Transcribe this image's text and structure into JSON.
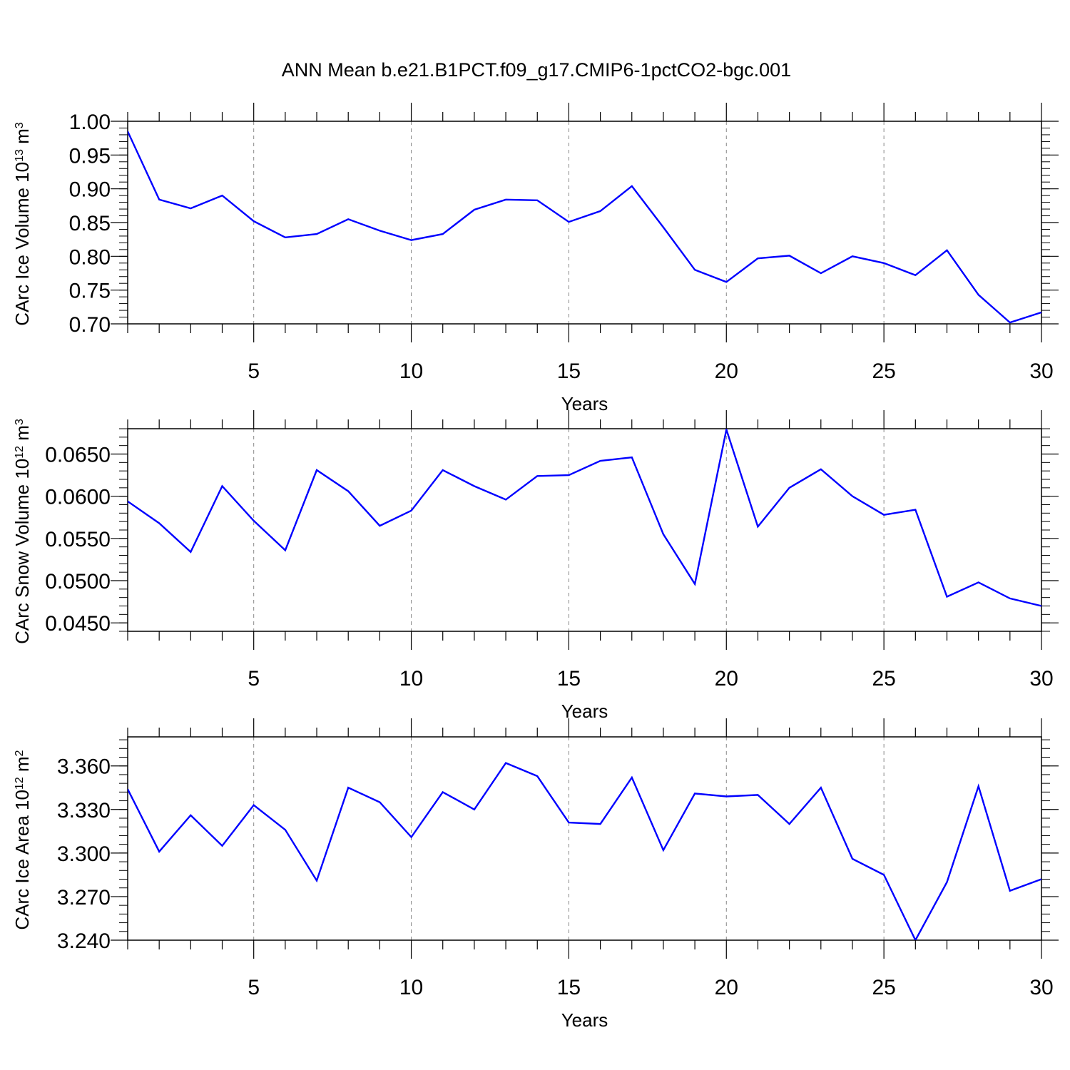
{
  "title": "ANN Mean b.e21.B1PCT.f09_g17.CMIP6-1pctCO2-bgc.001",
  "chart_data": [
    {
      "type": "line",
      "xlabel": "Years",
      "ylabel": "CArc Ice Volume 10",
      "ylabel_exp": "13",
      "ylabel_unit": " m",
      "ylabel_unit_exp": "3",
      "xlim": [
        1,
        30
      ],
      "ylim": [
        0.7,
        1.0
      ],
      "x_ticks": [
        5,
        10,
        15,
        20,
        25,
        30
      ],
      "y_ticks": [
        0.7,
        0.75,
        0.8,
        0.85,
        0.9,
        0.95,
        1.0
      ],
      "y_tick_labels": [
        "0.70",
        "0.75",
        "0.80",
        "0.85",
        "0.90",
        "0.95",
        "1.00"
      ],
      "y_minor_step": 0.01,
      "grid": "vertical dashed at major x ticks",
      "line_color": "#0000ff",
      "x": [
        1,
        2,
        3,
        4,
        5,
        6,
        7,
        8,
        9,
        10,
        11,
        12,
        13,
        14,
        15,
        16,
        17,
        18,
        19,
        20,
        21,
        22,
        23,
        24,
        25,
        26,
        27,
        28,
        29,
        30
      ],
      "values": [
        0.985,
        0.884,
        0.871,
        0.89,
        0.852,
        0.828,
        0.833,
        0.855,
        0.838,
        0.824,
        0.833,
        0.869,
        0.884,
        0.883,
        0.851,
        0.867,
        0.904,
        0.843,
        0.78,
        0.762,
        0.797,
        0.801,
        0.775,
        0.8,
        0.79,
        0.772,
        0.809,
        0.743,
        0.702,
        0.717
      ]
    },
    {
      "type": "line",
      "xlabel": "Years",
      "ylabel": "CArc Snow Volume 10",
      "ylabel_exp": "12",
      "ylabel_unit": " m",
      "ylabel_unit_exp": "3",
      "xlim": [
        1,
        30
      ],
      "ylim": [
        0.044,
        0.068
      ],
      "x_ticks": [
        5,
        10,
        15,
        20,
        25,
        30
      ],
      "y_ticks": [
        0.045,
        0.05,
        0.055,
        0.06,
        0.065
      ],
      "y_tick_labels": [
        "0.0450",
        "0.0500",
        "0.0550",
        "0.0600",
        "0.0650"
      ],
      "y_minor_step": 0.001,
      "grid": "vertical dashed at major x ticks",
      "line_color": "#0000ff",
      "x": [
        1,
        2,
        3,
        4,
        5,
        6,
        7,
        8,
        9,
        10,
        11,
        12,
        13,
        14,
        15,
        16,
        17,
        18,
        19,
        20,
        21,
        22,
        23,
        24,
        25,
        26,
        27,
        28,
        29,
        30
      ],
      "values": [
        0.0594,
        0.0568,
        0.0534,
        0.0612,
        0.0571,
        0.0536,
        0.0631,
        0.0606,
        0.0565,
        0.0583,
        0.0631,
        0.0612,
        0.0596,
        0.0624,
        0.0625,
        0.0642,
        0.0646,
        0.0555,
        0.0496,
        0.0679,
        0.0564,
        0.061,
        0.0632,
        0.06,
        0.0578,
        0.0584,
        0.0481,
        0.0498,
        0.0479,
        0.047
      ]
    },
    {
      "type": "line",
      "xlabel": "Years",
      "ylabel": "CArc Ice Area 10",
      "ylabel_exp": "12",
      "ylabel_unit": " m",
      "ylabel_unit_exp": "2",
      "xlim": [
        1,
        30
      ],
      "ylim": [
        3.24,
        3.38
      ],
      "x_ticks": [
        5,
        10,
        15,
        20,
        25,
        30
      ],
      "y_ticks": [
        3.24,
        3.27,
        3.3,
        3.33,
        3.36
      ],
      "y_tick_labels": [
        "3.240",
        "3.270",
        "3.300",
        "3.330",
        "3.360"
      ],
      "y_minor_step": 0.006,
      "grid": "vertical dashed at major x ticks",
      "line_color": "#0000ff",
      "x": [
        1,
        2,
        3,
        4,
        5,
        6,
        7,
        8,
        9,
        10,
        11,
        12,
        13,
        14,
        15,
        16,
        17,
        18,
        19,
        20,
        21,
        22,
        23,
        24,
        25,
        26,
        27,
        28,
        29,
        30
      ],
      "values": [
        3.344,
        3.301,
        3.326,
        3.305,
        3.333,
        3.316,
        3.281,
        3.345,
        3.335,
        3.311,
        3.342,
        3.33,
        3.362,
        3.353,
        3.321,
        3.32,
        3.352,
        3.302,
        3.341,
        3.339,
        3.34,
        3.32,
        3.345,
        3.296,
        3.285,
        3.24,
        3.28,
        3.346,
        3.274,
        3.282
      ]
    }
  ]
}
